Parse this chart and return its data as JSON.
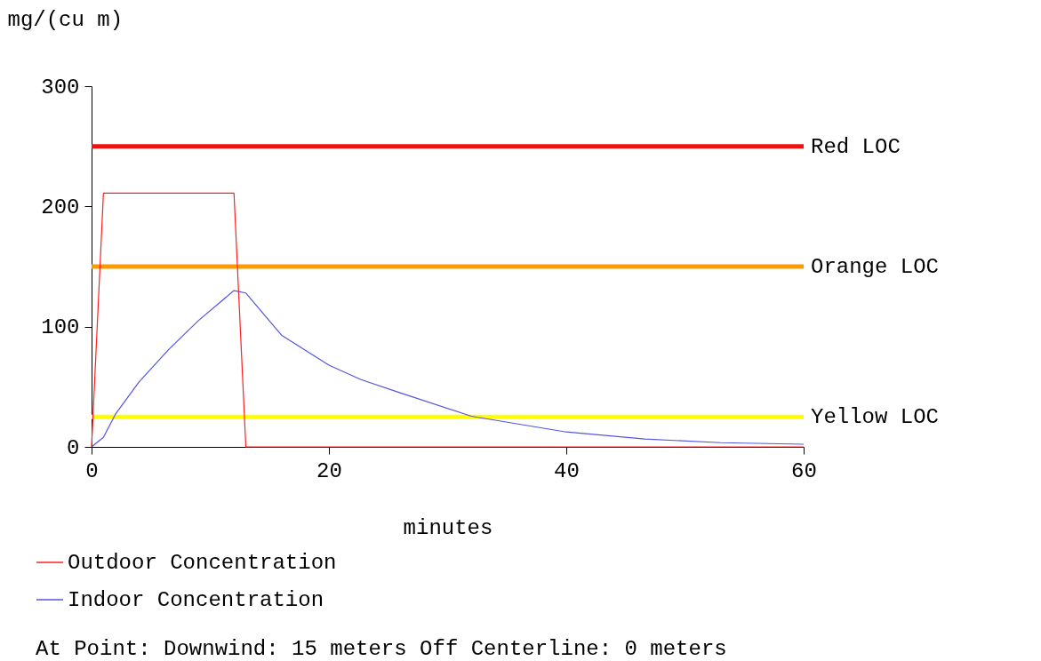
{
  "chart_data": {
    "type": "line",
    "xlabel": "minutes",
    "ylabel": "mg/(cu m)",
    "xlim": [
      0,
      60
    ],
    "ylim": [
      0,
      300
    ],
    "xticks": [
      0,
      20,
      40,
      60
    ],
    "yticks": [
      0,
      100,
      200,
      300
    ],
    "series": [
      {
        "name": "Outdoor Concentration",
        "color": "#ff2020",
        "x": [
          0,
          1,
          12,
          13,
          60
        ],
        "values": [
          0,
          211,
          211,
          0,
          0
        ]
      },
      {
        "name": "Indoor Concentration",
        "color": "#5555dd",
        "x": [
          0,
          1,
          2,
          4,
          6.5,
          9,
          12,
          13,
          16,
          20,
          22.7,
          26,
          32,
          40,
          46.6,
          53,
          60
        ],
        "values": [
          0,
          8,
          27,
          54,
          81,
          105,
          130,
          128,
          93,
          68,
          56,
          45,
          25.5,
          12.4,
          6.6,
          3.5,
          2.2
        ]
      }
    ],
    "ref_lines": [
      {
        "axis": "y",
        "value": 250,
        "label": "Red LOC",
        "color": "#ee1111"
      },
      {
        "axis": "y",
        "value": 150,
        "label": "Orange LOC",
        "color": "#ff9900"
      },
      {
        "axis": "y",
        "value": 25,
        "label": "Yellow LOC",
        "color": "#ffff00"
      }
    ],
    "annotations": [
      "At Point:   Downwind: 15 meters   Off Centerline: 0 meters"
    ],
    "legend": "bottom left",
    "grid": false,
    "marker": "none",
    "line_style": "solid"
  }
}
